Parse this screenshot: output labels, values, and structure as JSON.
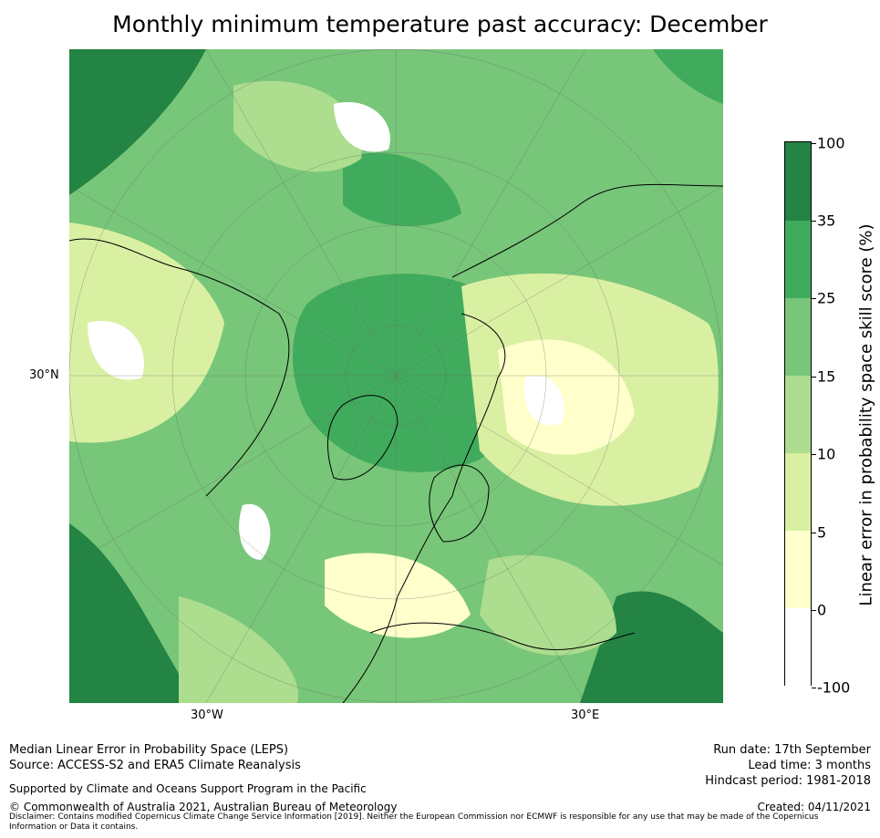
{
  "title": "Monthly minimum temperature past accuracy: December",
  "map": {
    "projection": "north polar stereographic",
    "lat_label": "30°N",
    "lon_labels": {
      "west": "30°W",
      "east": "30°E"
    }
  },
  "colorbar": {
    "label": "Linear error in probability space skill score (%)",
    "ticks": [
      "-100",
      "0",
      "5",
      "10",
      "15",
      "25",
      "35",
      "100"
    ],
    "colors": [
      "#ffffff",
      "#ffffcc",
      "#d9f0a3",
      "#addd8e",
      "#78c679",
      "#41ab5d",
      "#238443"
    ]
  },
  "footer": {
    "line1": "Median Linear Error in Probability Space (LEPS)",
    "line2": "Source: ACCESS-S2 and ERA5 Climate Reanalysis",
    "support": "Supported by Climate and Oceans Support Program in the Pacific",
    "copyright": "© Commonwealth of Australia 2021, Australian Bureau of Meteorology",
    "run_date": "Run date: 17th September",
    "lead_time": "Lead time: 3 months",
    "hindcast": "Hindcast period: 1981-2018",
    "created": "Created: 04/11/2021",
    "disclaimer": "Disclaimer: Contains modified Copernicus Climate Change Service Information [2019]. Neither the European Commission nor ECMWF is responsible for any use that may be made of the Copernicus Information or Data it contains."
  }
}
